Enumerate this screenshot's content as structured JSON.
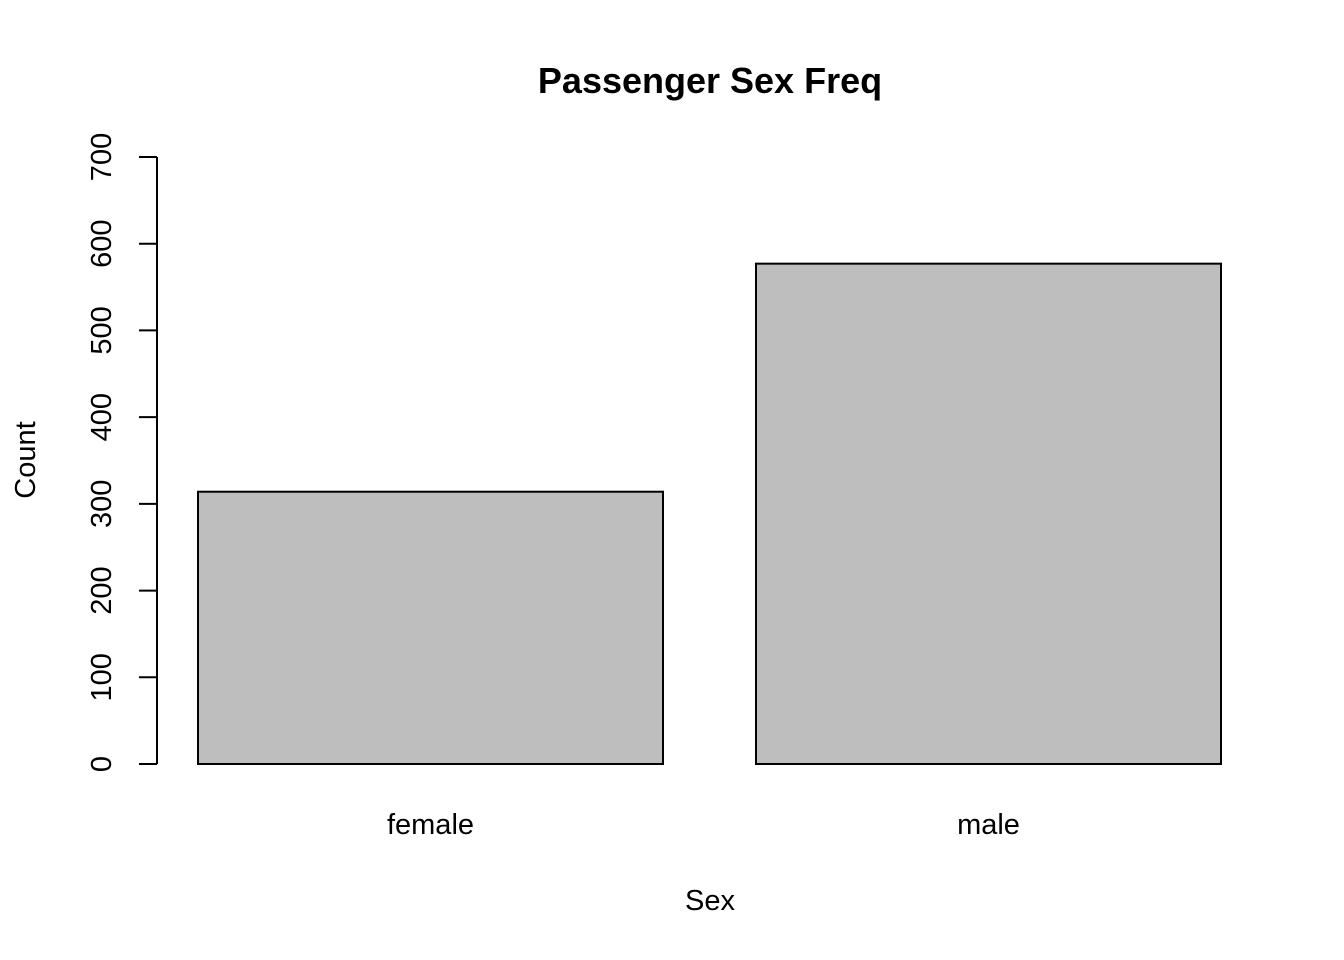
{
  "chart_data": {
    "type": "bar",
    "title": "Passenger Sex Freq",
    "xlabel": "Sex",
    "ylabel": "Count",
    "categories": [
      "female",
      "male"
    ],
    "values": [
      314,
      577
    ],
    "ylim": [
      0,
      700
    ],
    "yticks": [
      "0",
      "100",
      "200",
      "300",
      "400",
      "500",
      "600",
      "700"
    ],
    "bar_color": "#bebebe",
    "border_color": "#000000",
    "grid": false,
    "legend": "none"
  }
}
